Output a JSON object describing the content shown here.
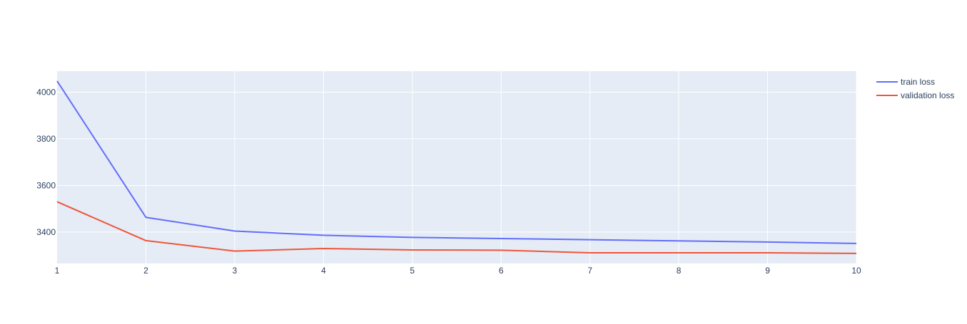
{
  "chart_data": {
    "type": "line",
    "title": "",
    "xlabel": "",
    "ylabel": "",
    "x": [
      1,
      2,
      3,
      4,
      5,
      6,
      7,
      8,
      9,
      10
    ],
    "xlim": [
      1,
      10
    ],
    "ylim": [
      3265,
      4090
    ],
    "x_ticks": [
      1,
      2,
      3,
      4,
      5,
      6,
      7,
      8,
      9,
      10
    ],
    "y_ticks": [
      3400,
      3600,
      3800,
      4000
    ],
    "grid": true,
    "legend_position": "top-right",
    "background_color": "#e5ecf6",
    "series": [
      {
        "name": "train loss",
        "color": "#636efa",
        "values": [
          4048,
          3463,
          3404,
          3386,
          3377,
          3372,
          3367,
          3362,
          3357,
          3351
        ]
      },
      {
        "name": "validation loss",
        "color": "#ef553b",
        "values": [
          3530,
          3363,
          3318,
          3329,
          3323,
          3322,
          3311,
          3311,
          3311,
          3308
        ]
      }
    ]
  }
}
